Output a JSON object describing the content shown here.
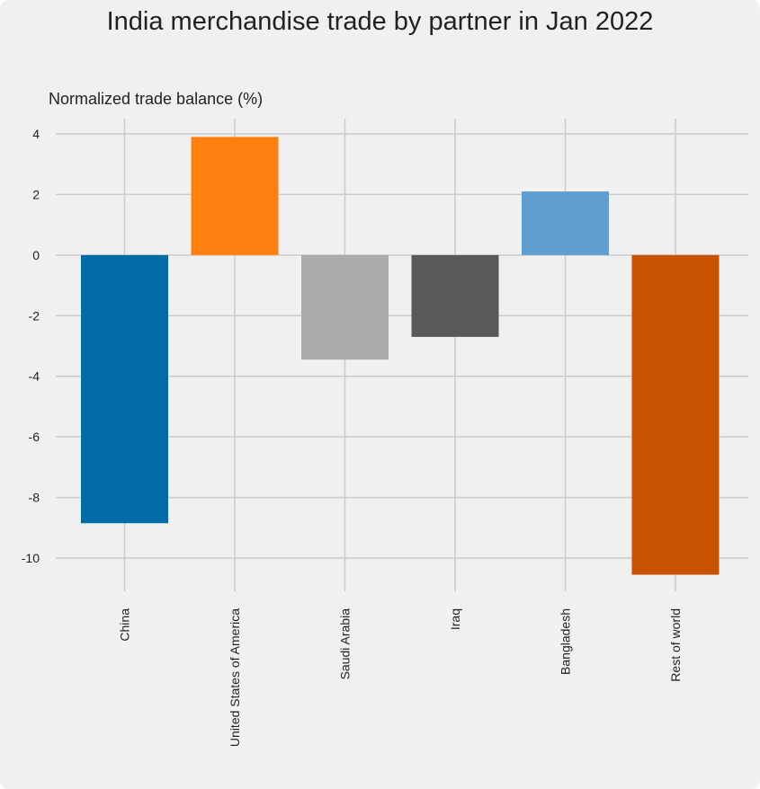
{
  "chart_data": {
    "type": "bar",
    "title": "India merchandise trade by partner in Jan 2022",
    "ylabel": "Normalized trade balance (%)",
    "xlabel": "",
    "categories": [
      "China",
      "United States of America",
      "Saudi Arabia",
      "Iraq",
      "Bangladesh",
      "Rest of world"
    ],
    "values": [
      -8.85,
      3.9,
      -3.45,
      -2.7,
      2.1,
      -10.55
    ],
    "colors": [
      "#006ba4",
      "#ff800e",
      "#ababab",
      "#595959",
      "#5f9ed1",
      "#c85200"
    ],
    "ylim": [
      -11,
      4.5
    ],
    "yticks": [
      4,
      2,
      0,
      -2,
      -4,
      -6,
      -8,
      -10
    ],
    "grid": true,
    "background": "#f0f0f0",
    "grid_color": "#cbcbcb"
  }
}
